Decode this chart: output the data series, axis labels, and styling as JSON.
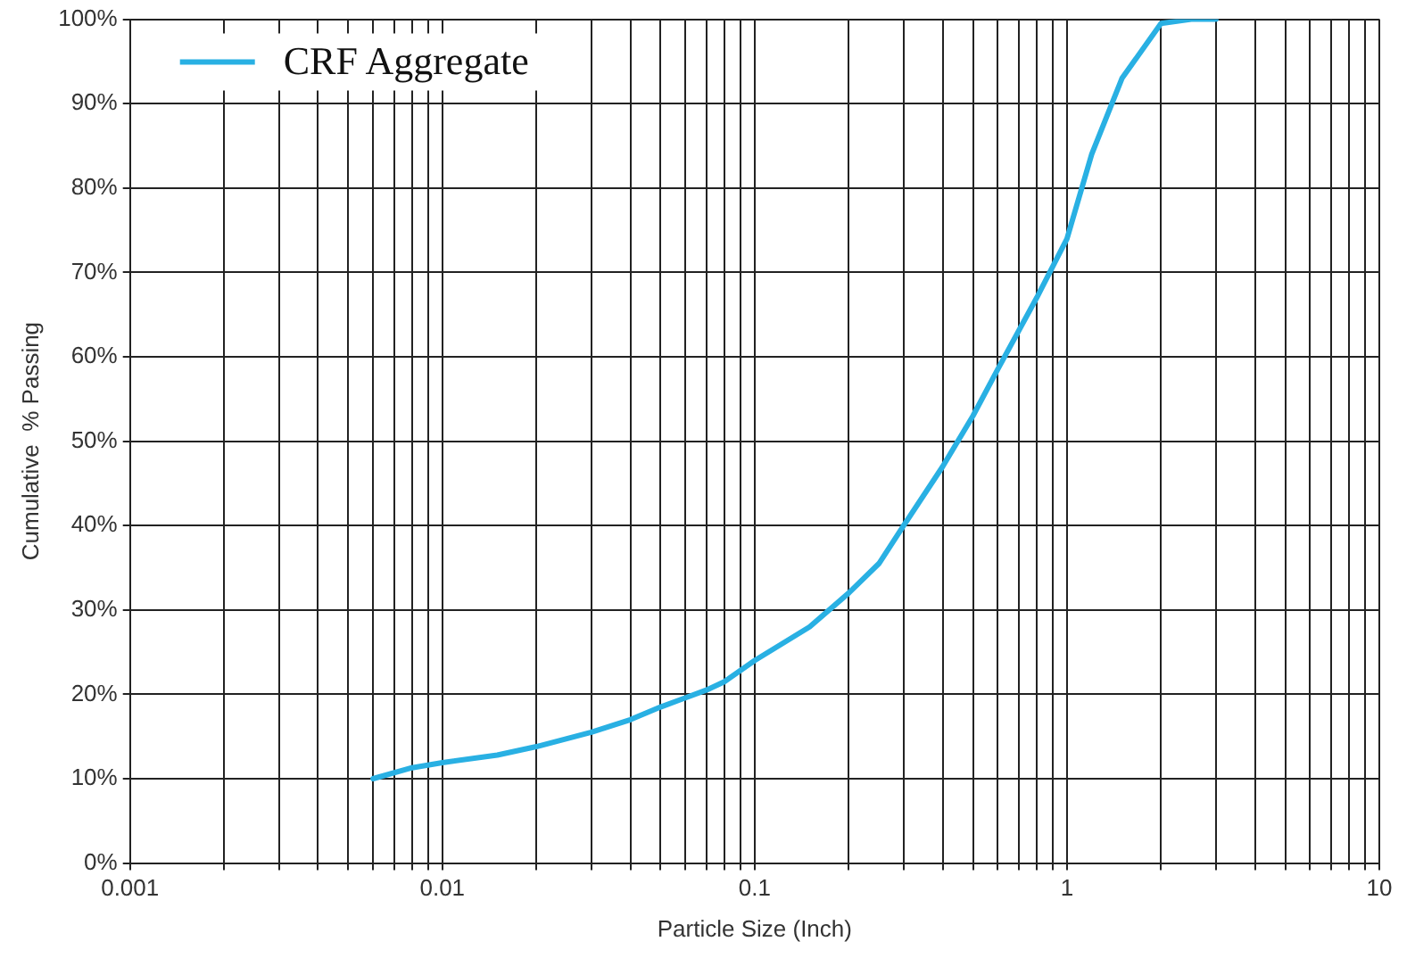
{
  "chart_data": {
    "type": "line",
    "xlabel": "Particle Size (Inch)",
    "ylabel": "Cumulative  % Passing",
    "log": "x",
    "grid": true,
    "legend": "top left",
    "marker": "none",
    "line_style": "solid",
    "xlim": [
      0.001,
      10
    ],
    "ylim": [
      0,
      100
    ],
    "xticks": [
      0.001,
      {
        "value": 0.002,
        "label": null
      },
      {
        "value": 0.003,
        "label": null
      },
      {
        "value": 0.004,
        "label": null
      },
      {
        "value": 0.005,
        "label": null
      },
      {
        "value": 0.006,
        "label": null
      },
      {
        "value": 0.007,
        "label": null
      },
      {
        "value": 0.008,
        "label": null
      },
      {
        "value": 0.009,
        "label": null
      },
      0.01,
      {
        "value": 0.02,
        "label": null
      },
      {
        "value": 0.03,
        "label": null
      },
      {
        "value": 0.04,
        "label": null
      },
      {
        "value": 0.05,
        "label": null
      },
      {
        "value": 0.06,
        "label": null
      },
      {
        "value": 0.07,
        "label": null
      },
      {
        "value": 0.08,
        "label": null
      },
      {
        "value": 0.09,
        "label": null
      },
      0.1,
      {
        "value": 0.2,
        "label": null
      },
      {
        "value": 0.3,
        "label": null
      },
      {
        "value": 0.4,
        "label": null
      },
      {
        "value": 0.5,
        "label": null
      },
      {
        "value": 0.6,
        "label": null
      },
      {
        "value": 0.7,
        "label": null
      },
      {
        "value": 0.8,
        "label": null
      },
      {
        "value": 0.9,
        "label": null
      },
      1,
      {
        "value": 2,
        "label": null
      },
      {
        "value": 3,
        "label": null
      },
      {
        "value": 4,
        "label": null
      },
      {
        "value": 5,
        "label": null
      },
      {
        "value": 6,
        "label": null
      },
      {
        "value": 7,
        "label": null
      },
      {
        "value": 8,
        "label": null
      },
      {
        "value": 9,
        "label": null
      },
      10
    ],
    "yticks": [
      {
        "value": 0,
        "label": "0%"
      },
      {
        "value": 10,
        "label": "10%"
      },
      {
        "value": 20,
        "label": "20%"
      },
      {
        "value": 30,
        "label": "30%"
      },
      {
        "value": 40,
        "label": "40%"
      },
      {
        "value": 50,
        "label": "50%"
      },
      {
        "value": 60,
        "label": "60%"
      },
      {
        "value": 70,
        "label": "70%"
      },
      {
        "value": 80,
        "label": "80%"
      },
      {
        "value": 90,
        "label": "90%"
      },
      {
        "value": 100,
        "label": "100%"
      }
    ],
    "series": [
      {
        "name": "CRF Aggregate",
        "color": "#29b0e3",
        "x": [
          0.006,
          0.008,
          0.01,
          0.015,
          0.02,
          0.03,
          0.04,
          0.05,
          0.07,
          0.08,
          0.1,
          0.15,
          0.2,
          0.25,
          0.3,
          0.4,
          0.5,
          0.6,
          0.8,
          1,
          1.2,
          1.5,
          2,
          2.5,
          3
        ],
        "values": [
          10,
          11.3,
          11.9,
          12.8,
          13.8,
          15.5,
          17,
          18.5,
          20.5,
          21.5,
          24,
          28,
          32,
          35.5,
          40,
          47,
          53,
          58.5,
          67,
          74,
          84,
          93,
          99.5,
          100,
          100
        ]
      }
    ]
  }
}
